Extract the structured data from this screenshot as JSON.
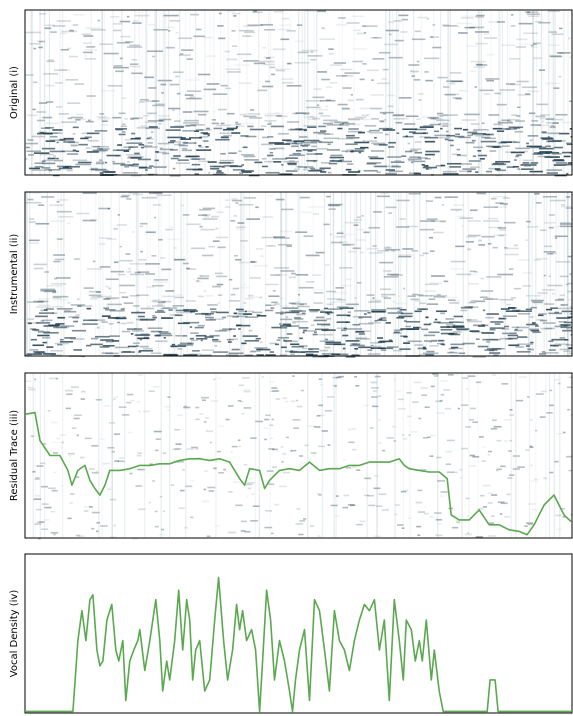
{
  "chart_data": [
    {
      "type": "spectrogram",
      "ylabel": "Original (i)"
    },
    {
      "type": "spectrogram",
      "ylabel": "Instrumental (ii)"
    },
    {
      "type": "spectrogram-line",
      "ylabel": "Residual Trace (iii)",
      "xlim": [
        0,
        548
      ],
      "ylim": [
        0,
        1
      ],
      "series": [
        {
          "color": "#5aa84f",
          "x": [
            0,
            10,
            15,
            25,
            35,
            43,
            47,
            53,
            60,
            65,
            70,
            75,
            80,
            85,
            95,
            105,
            115,
            125,
            135,
            145,
            155,
            165,
            175,
            185,
            195,
            205,
            215,
            220,
            225,
            235,
            240,
            245,
            255,
            265,
            275,
            285,
            295,
            305,
            315,
            325,
            335,
            345,
            355,
            365,
            375,
            380,
            385,
            395,
            405,
            415,
            423,
            427,
            435,
            445,
            455,
            465,
            475,
            485,
            495,
            503,
            510,
            520,
            530,
            540,
            547
          ],
          "values": [
            0.75,
            0.76,
            0.59,
            0.5,
            0.5,
            0.41,
            0.32,
            0.41,
            0.44,
            0.35,
            0.3,
            0.26,
            0.32,
            0.41,
            0.41,
            0.42,
            0.44,
            0.44,
            0.45,
            0.45,
            0.47,
            0.48,
            0.48,
            0.47,
            0.48,
            0.46,
            0.36,
            0.32,
            0.42,
            0.41,
            0.3,
            0.35,
            0.41,
            0.42,
            0.41,
            0.46,
            0.41,
            0.42,
            0.42,
            0.44,
            0.44,
            0.46,
            0.46,
            0.46,
            0.48,
            0.44,
            0.42,
            0.41,
            0.4,
            0.4,
            0.36,
            0.14,
            0.11,
            0.11,
            0.17,
            0.08,
            0.08,
            0.05,
            0.04,
            0.02,
            0.08,
            0.2,
            0.26,
            0.14,
            0.1
          ]
        }
      ]
    },
    {
      "type": "line",
      "ylabel": "Vocal Density (iv)",
      "xlim": [
        0,
        548
      ],
      "ylim": [
        -0.01,
        1
      ],
      "series": [
        {
          "color": "#5aa84f",
          "x": [
            0,
            48,
            53,
            57,
            61,
            65,
            68,
            72,
            75,
            78,
            82,
            87,
            91,
            94,
            98,
            101,
            105,
            109,
            113,
            115,
            120,
            125,
            131,
            135,
            138,
            142,
            145,
            150,
            154,
            158,
            162,
            165,
            168,
            171,
            175,
            180,
            185,
            190,
            194,
            199,
            203,
            208,
            212,
            215,
            218,
            222,
            227,
            231,
            235,
            238,
            242,
            246,
            250,
            255,
            260,
            265,
            268,
            271,
            275,
            280,
            285,
            290,
            295,
            300,
            305,
            310,
            315,
            320,
            325,
            330,
            335,
            340,
            345,
            350,
            355,
            360,
            365,
            370,
            375,
            379,
            382,
            387,
            391,
            395,
            398,
            402,
            407,
            410,
            415,
            419,
            463,
            466,
            471,
            474,
            548
          ],
          "values": [
            0,
            0,
            0.45,
            0.64,
            0.45,
            0.71,
            0.74,
            0.39,
            0.29,
            0.32,
            0.58,
            0.68,
            0.39,
            0.32,
            0.45,
            0.07,
            0.32,
            0.39,
            0.45,
            0.52,
            0.26,
            0.45,
            0.71,
            0.45,
            0.13,
            0.32,
            0.2,
            0.45,
            0.77,
            0.39,
            0.71,
            0.58,
            0.2,
            0.39,
            0.45,
            0.13,
            0.2,
            0.58,
            0.85,
            0.45,
            0.2,
            0.39,
            0.68,
            0.52,
            0.64,
            0.45,
            0.52,
            0.39,
            0,
            0.32,
            0.77,
            0.58,
            0.2,
            0.45,
            0.32,
            0.13,
            0,
            0.2,
            0.39,
            0.52,
            0.07,
            0.71,
            0.64,
            0.39,
            0.13,
            0.64,
            0.45,
            0.39,
            0.26,
            0.45,
            0.58,
            0.68,
            0.64,
            0.71,
            0.39,
            0.58,
            0.07,
            0.71,
            0.45,
            0.2,
            0.58,
            0.52,
            0.32,
            0.45,
            0.32,
            0.58,
            0.2,
            0.39,
            0.13,
            0,
            0,
            0.2,
            0.2,
            0,
            0
          ]
        }
      ]
    }
  ]
}
